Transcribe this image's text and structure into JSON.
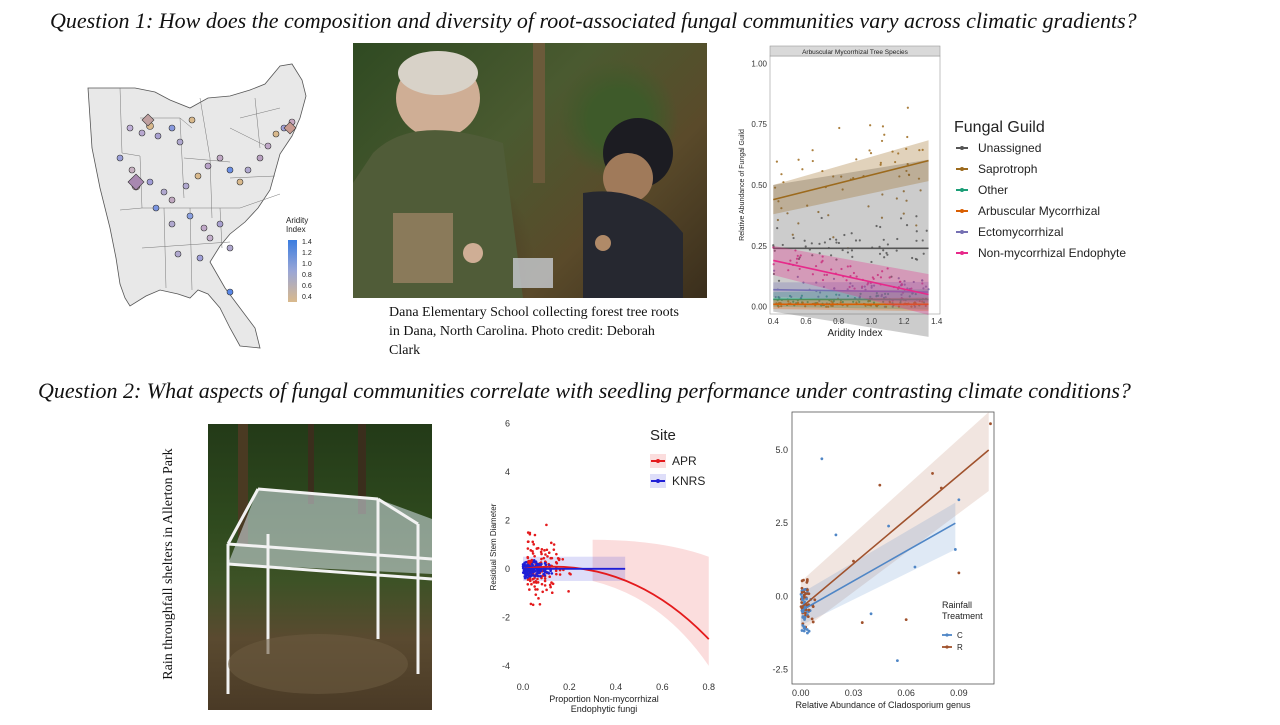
{
  "question1": "Question 1: How does the composition and diversity of root-associated fungal communities vary across climatic gradients?",
  "question2": "Question 2: What aspects of fungal communities correlate with seedling performance under contrasting climate conditions?",
  "map": {
    "legend_title": "Aridity\nIndex",
    "legend_ticks": [
      "1.4",
      "1.2",
      "1.0",
      "0.8",
      "0.6",
      "0.4"
    ],
    "colors": {
      "high": "#3b7de0",
      "mid": "#b0a8cf",
      "low": "#d9b98c"
    }
  },
  "photo1": {
    "caption": "Dana Elementary School collecting forest tree roots in Dana, North Carolina. Photo credit: Deborah Clark"
  },
  "photo2": {
    "caption": "Rain throughfall shelters in Allerton Park"
  },
  "chart_data": [
    {
      "type": "scatter",
      "title": "Arbuscular Mycorrhizal Tree Species",
      "xlabel": "Aridity Index",
      "ylabel": "Relative Abundance of Fungal Guild",
      "xlim": [
        0.38,
        1.42
      ],
      "ylim": [
        -0.03,
        1.03
      ],
      "xticks": [
        "0.4",
        "0.6",
        "0.8",
        "1.0",
        "1.2",
        "1.4"
      ],
      "yticks": [
        "0.00",
        "0.25",
        "0.50",
        "0.75",
        "1.00"
      ],
      "legend_title": "Fungal Guild",
      "legend_position": "right",
      "series": [
        {
          "name": "Unassigned",
          "color": "#555555",
          "trend": [
            0.24,
            0.24
          ]
        },
        {
          "name": "Saprotroph",
          "color": "#9c6a1d",
          "trend": [
            0.44,
            0.6
          ]
        },
        {
          "name": "Other",
          "color": "#1b9e77",
          "trend": [
            0.03,
            0.03
          ]
        },
        {
          "name": "Arbuscular Mycorrhizal",
          "color": "#d95f02",
          "trend": [
            0.01,
            0.01
          ]
        },
        {
          "name": "Ectomycorrhizal",
          "color": "#7570b3",
          "trend": [
            0.07,
            0.06
          ]
        },
        {
          "name": "Non-mycorrhizal Endophyte",
          "color": "#e7298a",
          "trend": [
            0.19,
            0.05
          ]
        }
      ]
    },
    {
      "type": "scatter",
      "title": "",
      "xlabel": "Proportion Non-mycorrhizal\nEndophytic fungi",
      "ylabel": "Residual Stem Diameter",
      "xlim": [
        -0.03,
        0.9
      ],
      "ylim": [
        -4.5,
        6.3
      ],
      "xticks": [
        "0.0",
        "0.2",
        "0.4",
        "0.6",
        "0.8"
      ],
      "yticks": [
        "6",
        "4",
        "2",
        "0",
        "-2",
        "-4"
      ],
      "legend_title": "Site",
      "legend_position": "top-right",
      "series": [
        {
          "name": "APR",
          "color": "#e41a1c"
        },
        {
          "name": "KNRS",
          "color": "#1f1fd6"
        }
      ]
    },
    {
      "type": "scatter",
      "title": "",
      "xlabel": "Relative Abundance of Cladosporium genus",
      "ylabel": "",
      "xlim": [
        -0.005,
        0.11
      ],
      "ylim": [
        -3.0,
        6.3
      ],
      "xticks": [
        "0.00",
        "0.03",
        "0.06",
        "0.09"
      ],
      "yticks": [
        "5.0",
        "2.5",
        "0.0",
        "-2.5"
      ],
      "legend_title": "Rainfall\nTreatment",
      "legend_position": "bottom-right",
      "series": [
        {
          "name": "C",
          "color": "#4f86c6",
          "trend": [
            -0.5,
            2.5
          ]
        },
        {
          "name": "R",
          "color": "#a0522d",
          "trend": [
            -0.4,
            5.0
          ]
        }
      ]
    }
  ]
}
